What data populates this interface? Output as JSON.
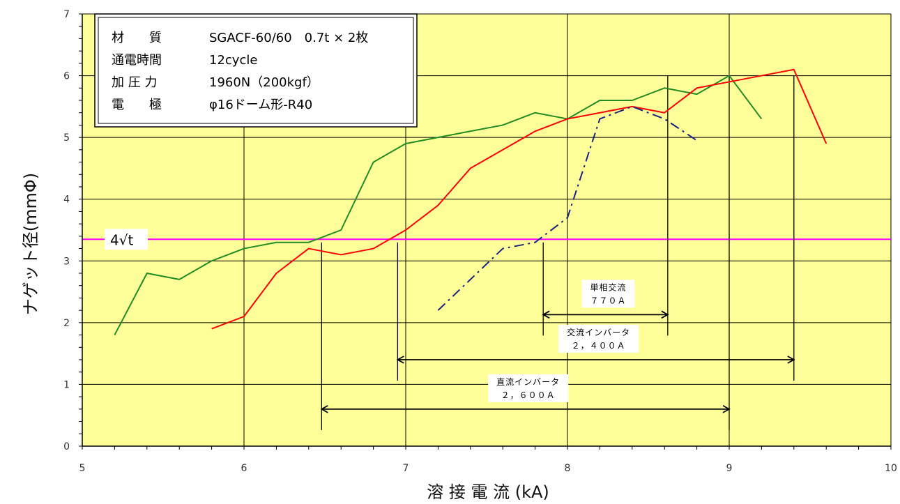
{
  "chart_data": {
    "type": "line",
    "xlabel": "溶 接 電 流 (kA)",
    "ylabel": "ナゲット径(mmΦ)",
    "xlim": [
      5,
      10
    ],
    "ylim": [
      0,
      7
    ],
    "xticks": [
      5,
      6,
      7,
      8,
      9,
      10
    ],
    "yticks": [
      0,
      1,
      2,
      3,
      4,
      5,
      6,
      7
    ],
    "grid": true,
    "background_color": "#ffff99",
    "info_box": [
      {
        "label": "材　　質",
        "value": "SGACF-60/60　0.7t × 2枚"
      },
      {
        "label": "通電時間",
        "value": "12cycle"
      },
      {
        "label": "加 圧 力",
        "value": "1960N（200kgf）"
      },
      {
        "label": "電　　極",
        "value": "φ16ドーム形-R40"
      }
    ],
    "reference_line": {
      "label": "4√t",
      "y": 3.35,
      "color": "#ff00ff"
    },
    "series": [
      {
        "color": "#228b22",
        "style": "solid",
        "x": [
          5.2,
          5.4,
          5.6,
          5.8,
          6.0,
          6.2,
          6.4,
          6.6,
          6.8,
          7.0,
          7.2,
          7.4,
          7.6,
          7.8,
          8.0,
          8.2,
          8.4,
          8.6,
          8.8,
          9.0,
          9.2
        ],
        "y": [
          1.8,
          2.8,
          2.7,
          3.0,
          3.2,
          3.3,
          3.3,
          3.5,
          4.6,
          4.9,
          5.0,
          5.1,
          5.2,
          5.4,
          5.3,
          5.6,
          5.6,
          5.8,
          5.7,
          6.0,
          5.3
        ]
      },
      {
        "color": "#ff0000",
        "style": "solid",
        "x": [
          5.8,
          6.0,
          6.2,
          6.4,
          6.6,
          6.8,
          7.0,
          7.2,
          7.4,
          7.6,
          7.8,
          8.0,
          8.2,
          8.4,
          8.6,
          8.8,
          9.0,
          9.2,
          9.4,
          9.6
        ],
        "y": [
          1.9,
          2.1,
          2.8,
          3.2,
          3.1,
          3.2,
          3.5,
          3.9,
          4.5,
          4.8,
          5.1,
          5.3,
          5.4,
          5.5,
          5.4,
          5.8,
          5.9,
          6.0,
          6.1,
          4.9
        ]
      },
      {
        "color": "#1a237e",
        "style": "dashdot",
        "x": [
          7.2,
          7.4,
          7.6,
          7.8,
          8.0,
          8.2,
          8.4,
          8.6,
          8.8
        ],
        "y": [
          2.2,
          2.7,
          3.2,
          3.3,
          3.7,
          5.3,
          5.5,
          5.3,
          4.95
        ]
      }
    ],
    "ranges": [
      {
        "label_line1": "単相交流",
        "label_line2": "７７０Ａ",
        "x_start": 7.85,
        "x_end": 8.62,
        "y": 2.13
      },
      {
        "label_line1": "交流インバータ",
        "label_line2": "２，４００Ａ",
        "x_start": 6.95,
        "x_end": 9.4,
        "y": 1.4
      },
      {
        "label_line1": "直流インバータ",
        "label_line2": "２，６００Ａ",
        "x_start": 6.48,
        "x_end": 9.0,
        "y": 0.6
      }
    ]
  }
}
